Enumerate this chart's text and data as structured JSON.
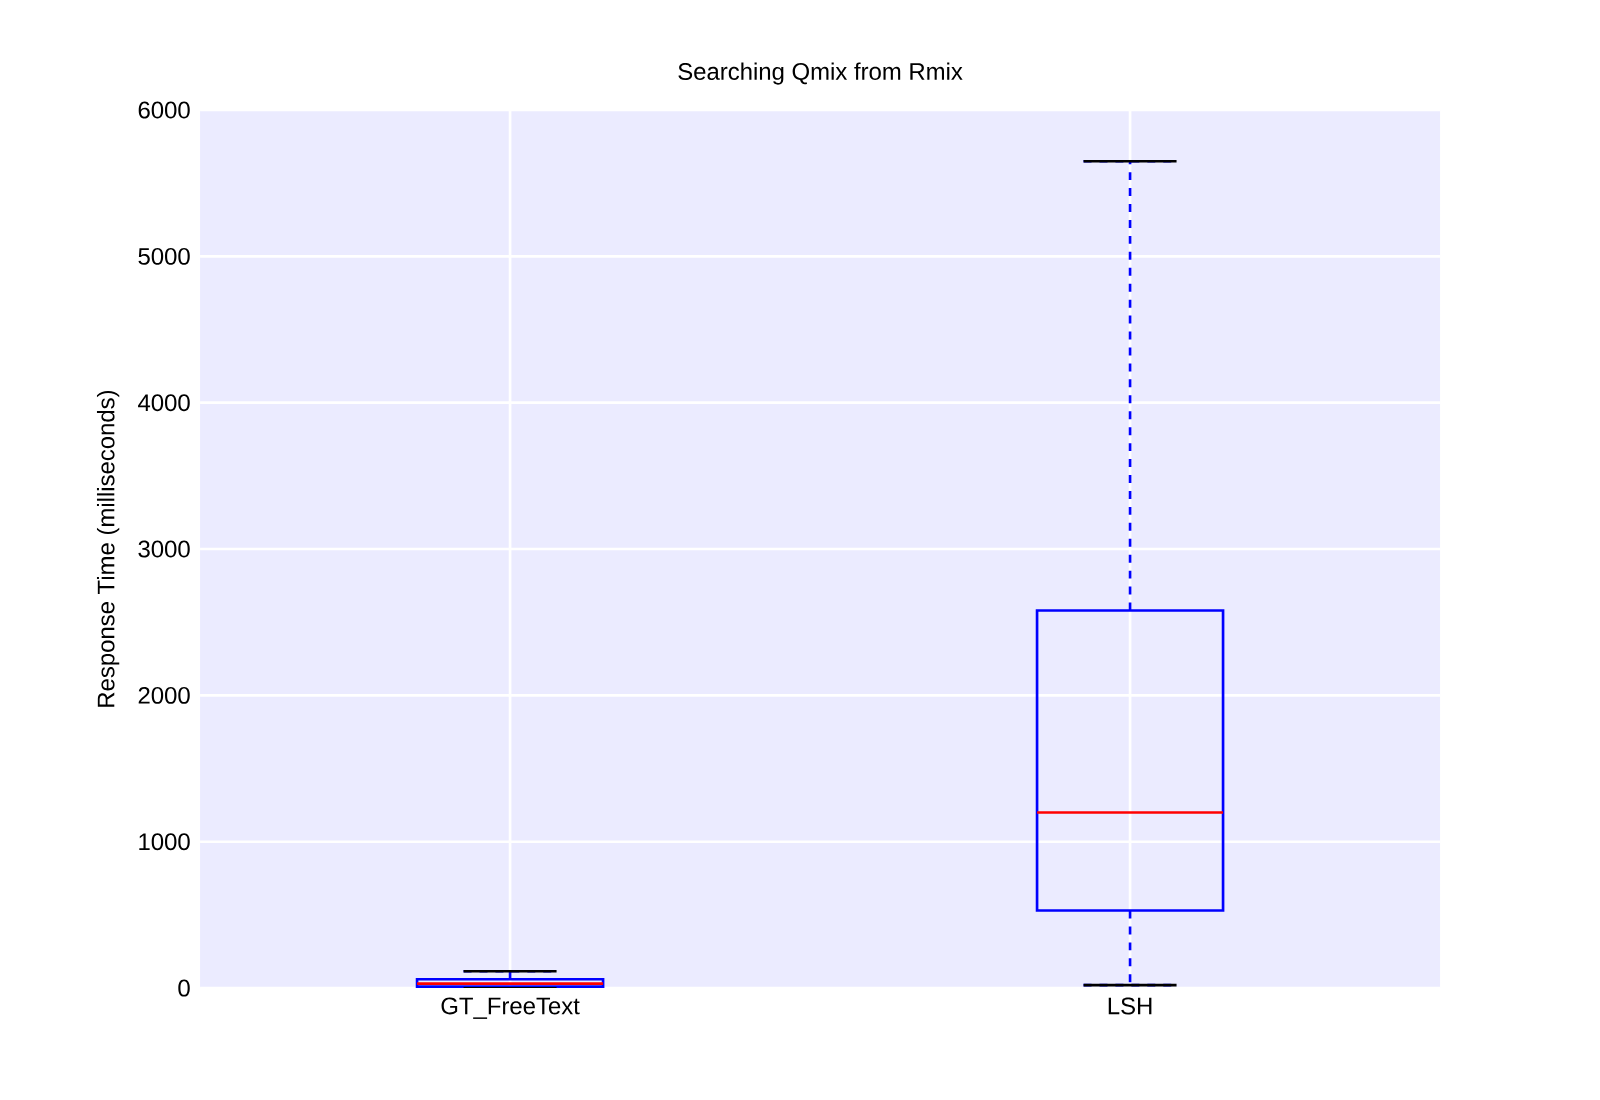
{
  "chart_data": {
    "type": "box",
    "title": "Searching Qmix from Rmix",
    "ylabel": "Response Time (milliseconds)",
    "categories": [
      "GT_FreeText",
      "LSH"
    ],
    "boxes": [
      {
        "low": 0,
        "q1": 10,
        "median": 30,
        "q3": 60,
        "high": 115
      },
      {
        "low": 20,
        "q1": 530,
        "median": 1200,
        "q3": 2580,
        "high": 5650
      }
    ],
    "color": "#0000ff",
    "ylim": [
      0,
      6000
    ],
    "yticks": [
      0,
      1000,
      2000,
      3000,
      4000,
      5000,
      6000
    ],
    "grid": true
  }
}
